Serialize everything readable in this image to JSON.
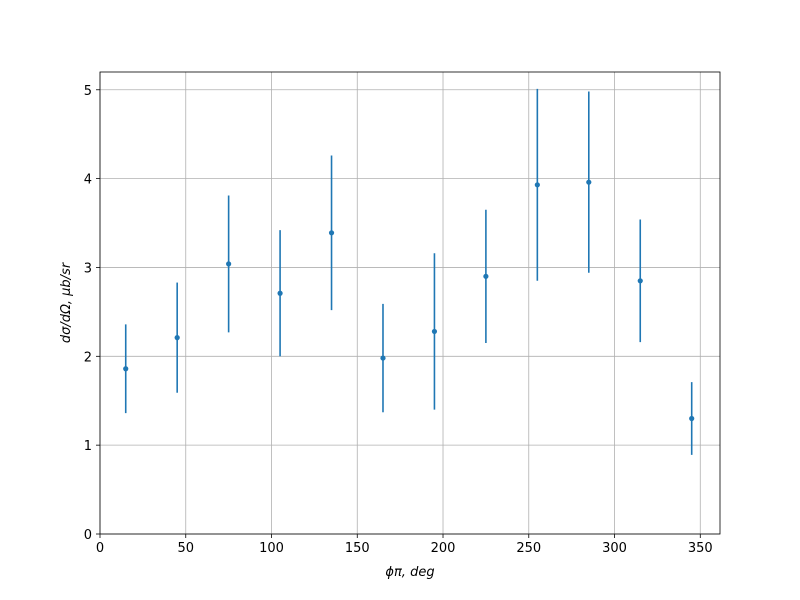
{
  "chart_data": {
    "type": "errorbar",
    "xlabel": "ϕπ, deg",
    "ylabel": "dσ/dΩ, μb/sr",
    "x": [
      15,
      45,
      75,
      105,
      135,
      165,
      195,
      225,
      255,
      285,
      315,
      345
    ],
    "series": [
      {
        "color": "#1f77b4",
        "values": [
          1.86,
          2.21,
          3.04,
          2.71,
          3.39,
          1.98,
          2.28,
          2.9,
          3.93,
          3.96,
          2.85,
          1.3
        ],
        "errors": [
          0.5,
          0.62,
          0.77,
          0.71,
          0.87,
          0.61,
          0.88,
          0.75,
          1.08,
          1.02,
          0.69,
          0.41
        ]
      }
    ],
    "xlim": [
      0,
      361.5
    ],
    "ylim": [
      0,
      5.2
    ],
    "xticks": [
      0,
      50,
      100,
      150,
      200,
      250,
      300,
      350
    ],
    "yticks": [
      0,
      1,
      2,
      3,
      4,
      5
    ],
    "grid": true
  }
}
